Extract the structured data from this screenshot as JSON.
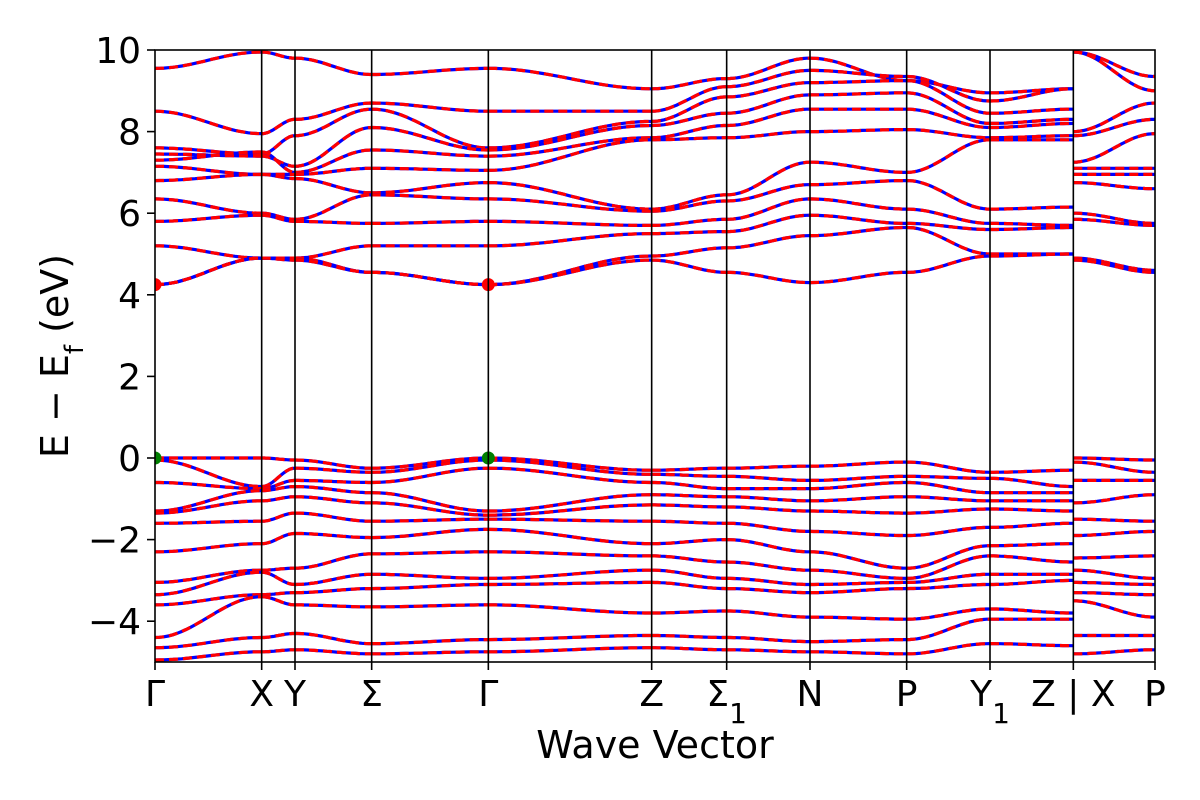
{
  "chart_data": {
    "type": "line",
    "title": "",
    "xlabel": "Wave Vector",
    "ylabel": "E − E",
    "ylabel_sub": "f",
    "ylabel_unit": "(eV)",
    "ylim": [
      -5,
      10
    ],
    "y_ticks": [
      {
        "value": -4,
        "label": "−4"
      },
      {
        "value": -2,
        "label": "−2"
      },
      {
        "value": 0,
        "label": "0"
      },
      {
        "value": 2,
        "label": "2"
      },
      {
        "value": 4,
        "label": "4"
      },
      {
        "value": 6,
        "label": "6"
      },
      {
        "value": 8,
        "label": "8"
      },
      {
        "value": 10,
        "label": "10"
      }
    ],
    "x_range": [
      0,
      3.0
    ],
    "high_symmetry_points": [
      {
        "label": "Γ",
        "sub": "",
        "x": 0.0
      },
      {
        "label": "X",
        "sub": "",
        "x": 0.32
      },
      {
        "label": "Y",
        "sub": "",
        "x": 0.42
      },
      {
        "label": "Σ",
        "sub": "",
        "x": 0.65
      },
      {
        "label": "Γ",
        "sub": "",
        "x": 1.0
      },
      {
        "label": "Z",
        "sub": "",
        "x": 1.49
      },
      {
        "label": "Σ",
        "sub": "1",
        "x": 1.715
      },
      {
        "label": "N",
        "sub": "",
        "x": 1.965
      },
      {
        "label": "P",
        "sub": "",
        "x": 2.255
      },
      {
        "label": "Y",
        "sub": "1",
        "x": 2.505
      },
      {
        "label": "Z | X",
        "sub": "",
        "x": 2.755
      },
      {
        "label": "P",
        "sub": "",
        "x": 3.0
      }
    ],
    "segments": [
      [
        0.0,
        0.32
      ],
      [
        0.32,
        0.42
      ],
      [
        0.42,
        0.65
      ],
      [
        0.65,
        1.0
      ],
      [
        1.0,
        1.49
      ],
      [
        1.49,
        1.715
      ],
      [
        1.715,
        1.965
      ],
      [
        1.965,
        2.255
      ],
      [
        2.255,
        2.505
      ],
      [
        2.505,
        2.755
      ],
      [
        2.755,
        3.0
      ]
    ],
    "series": [
      {
        "color": "#0000ff",
        "dash": false
      },
      {
        "color": "#ff0000",
        "dash": true
      }
    ],
    "bands": [
      {
        "nodes": [
          9.55,
          9.95,
          9.8,
          9.4,
          9.55,
          9.05,
          9.3,
          9.8,
          9.25,
          8.95,
          9.05,
          9.95,
          9.35
        ]
      },
      {
        "nodes": [
          8.5,
          7.95,
          8.3,
          8.7,
          8.5,
          8.5,
          9.1,
          9.5,
          9.35,
          8.75,
          9.05,
          9.95,
          9.0
        ]
      },
      {
        "nodes": [
          7.6,
          7.45,
          7.9,
          8.55,
          7.6,
          8.25,
          8.85,
          9.2,
          9.25,
          8.45,
          8.55,
          8.0,
          8.7
        ]
      },
      {
        "nodes": [
          7.45,
          7.4,
          7.15,
          8.1,
          7.55,
          8.15,
          8.45,
          8.9,
          8.95,
          8.2,
          8.3,
          7.9,
          8.3
        ]
      },
      {
        "nodes": [
          7.3,
          7.5,
          7.0,
          7.55,
          7.4,
          7.85,
          8.15,
          8.55,
          8.55,
          8.1,
          8.2,
          7.25,
          7.95
        ]
      },
      {
        "nodes": [
          7.15,
          6.95,
          6.95,
          7.1,
          7.05,
          7.8,
          7.85,
          8.0,
          8.05,
          7.85,
          7.9,
          7.1,
          7.1
        ]
      },
      {
        "nodes": [
          6.8,
          6.95,
          6.85,
          6.5,
          6.75,
          6.1,
          6.45,
          7.25,
          7.0,
          7.8,
          7.8,
          6.95,
          6.95
        ]
      },
      {
        "nodes": [
          6.35,
          6.0,
          5.85,
          6.45,
          6.35,
          6.05,
          6.3,
          6.7,
          6.8,
          6.1,
          6.15,
          6.75,
          6.6
        ]
      },
      {
        "nodes": [
          5.8,
          5.95,
          5.8,
          5.75,
          5.8,
          5.7,
          5.85,
          6.35,
          6.1,
          5.75,
          5.7,
          6.0,
          5.75
        ]
      },
      {
        "nodes": [
          5.2,
          4.9,
          4.9,
          5.2,
          5.2,
          5.5,
          5.55,
          5.95,
          5.75,
          5.6,
          5.65,
          5.85,
          5.7
        ]
      },
      {
        "nodes": [
          4.25,
          4.9,
          4.9,
          4.55,
          4.25,
          4.95,
          5.15,
          5.45,
          5.65,
          5.0,
          5.0,
          4.9,
          4.6
        ]
      },
      {
        "nodes": [
          4.25,
          4.9,
          4.85,
          4.55,
          4.25,
          4.85,
          4.55,
          4.3,
          4.55,
          4.95,
          5.0,
          4.85,
          4.55
        ]
      },
      {
        "nodes": [
          0.0,
          0.0,
          -0.05,
          -0.25,
          0.0,
          -0.3,
          -0.25,
          -0.2,
          -0.1,
          -0.35,
          -0.3,
          0.0,
          -0.05
        ]
      },
      {
        "nodes": [
          -0.05,
          -0.7,
          -0.25,
          -0.35,
          -0.05,
          -0.4,
          -0.45,
          -0.55,
          -0.45,
          -0.5,
          -0.7,
          -0.1,
          -0.35
        ]
      },
      {
        "nodes": [
          -0.6,
          -0.75,
          -0.55,
          -0.6,
          -0.25,
          -0.6,
          -0.75,
          -0.75,
          -0.6,
          -0.85,
          -0.85,
          -0.55,
          -0.55
        ]
      },
      {
        "nodes": [
          -1.3,
          -0.8,
          -0.7,
          -0.85,
          -1.3,
          -0.9,
          -0.95,
          -1.05,
          -0.95,
          -1.05,
          -1.05,
          -1.1,
          -0.9
        ]
      },
      {
        "nodes": [
          -1.35,
          -1.05,
          -0.95,
          -1.1,
          -1.4,
          -1.15,
          -1.2,
          -1.3,
          -1.35,
          -1.25,
          -1.3,
          -1.5,
          -1.55
        ]
      },
      {
        "nodes": [
          -1.6,
          -1.55,
          -1.35,
          -1.55,
          -1.5,
          -1.55,
          -1.6,
          -1.8,
          -1.9,
          -1.7,
          -1.6,
          -1.9,
          -1.8
        ]
      },
      {
        "nodes": [
          -2.3,
          -2.1,
          -1.85,
          -1.95,
          -1.75,
          -2.1,
          -2.0,
          -2.3,
          -2.7,
          -2.15,
          -2.1,
          -2.45,
          -2.4
        ]
      },
      {
        "nodes": [
          -3.05,
          -2.75,
          -2.7,
          -2.35,
          -2.3,
          -2.4,
          -2.55,
          -2.75,
          -2.95,
          -2.4,
          -2.55,
          -2.75,
          -2.95
        ]
      },
      {
        "nodes": [
          -3.35,
          -2.8,
          -3.1,
          -2.85,
          -2.95,
          -2.75,
          -2.95,
          -3.1,
          -3.05,
          -2.85,
          -2.85,
          -3.05,
          -3.1
        ]
      },
      {
        "nodes": [
          -3.6,
          -3.35,
          -3.3,
          -3.2,
          -3.1,
          -3.05,
          -3.2,
          -3.3,
          -3.2,
          -3.1,
          -3.0,
          -3.3,
          -3.35
        ]
      },
      {
        "nodes": [
          -4.4,
          -3.4,
          -3.6,
          -3.65,
          -3.6,
          -3.8,
          -3.75,
          -3.9,
          -3.95,
          -3.7,
          -3.8,
          -3.5,
          -3.9
        ]
      },
      {
        "nodes": [
          -4.65,
          -4.4,
          -4.3,
          -4.55,
          -4.45,
          -4.35,
          -4.4,
          -4.5,
          -4.45,
          -3.95,
          -3.95,
          -4.35,
          -4.35
        ]
      },
      {
        "nodes": [
          -4.95,
          -4.75,
          -4.7,
          -4.8,
          -4.75,
          -4.65,
          -4.7,
          -4.75,
          -4.8,
          -4.55,
          -4.6,
          -4.8,
          -4.7
        ]
      }
    ],
    "node_x": [
      0.0,
      0.32,
      0.42,
      0.65,
      1.0,
      1.49,
      1.715,
      1.965,
      2.255,
      2.505,
      2.755,
      2.755,
      3.0
    ],
    "markers": [
      {
        "x": 0.0,
        "y": 4.25,
        "color": "#ff0000"
      },
      {
        "x": 1.0,
        "y": 4.25,
        "color": "#ff0000"
      },
      {
        "x": 0.0,
        "y": 0.0,
        "color": "#008000"
      },
      {
        "x": 1.0,
        "y": 0.0,
        "color": "#008000"
      }
    ],
    "grid": false,
    "legend": "none"
  }
}
